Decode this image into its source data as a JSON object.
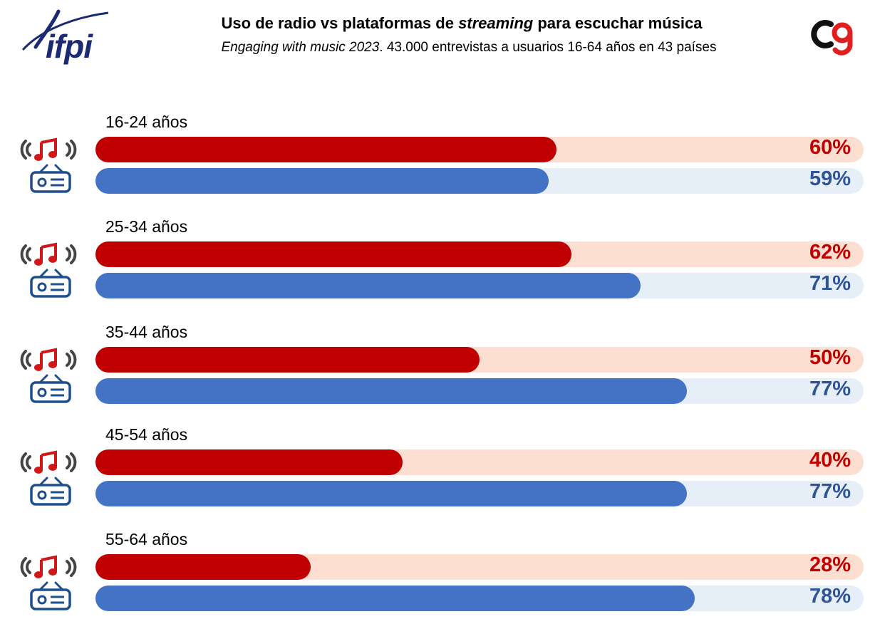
{
  "header": {
    "logo_left_text": "ifpi",
    "title_part1": "Uso de radio vs plataformas de ",
    "title_italic": "streaming",
    "title_part2": " para escuchar música",
    "subtitle_italic": "Engaging with music 2023",
    "subtitle_rest": ". 43.000 entrevistas a usuarios 16-64 años en 43 países"
  },
  "colors": {
    "streaming": "#c00000",
    "streaming_track": "#fcdfd0",
    "radio": "#4472c4",
    "radio_label": "#2f5597",
    "radio_track": "#e6eef8",
    "logo_blue": "#1b2a72"
  },
  "icons": {
    "streaming": "music-streaming-icon",
    "radio": "radio-icon"
  },
  "chart_data": {
    "type": "bar",
    "orientation": "horizontal",
    "categories": [
      "16-24 años",
      "25-34 años",
      "35-44 años",
      "45-54 años",
      "55-64 años"
    ],
    "series": [
      {
        "values": [
          60,
          62,
          50,
          40,
          28
        ],
        "labels": [
          "60%",
          "62%",
          "50%",
          "40%",
          "28%"
        ],
        "color": "#c00000",
        "icon": "music-streaming-icon"
      },
      {
        "values": [
          59,
          71,
          77,
          77,
          78
        ],
        "labels": [
          "59%",
          "71%",
          "77%",
          "77%",
          "78%"
        ],
        "color": "#4472c4",
        "icon": "radio-icon"
      }
    ],
    "xlim": [
      0,
      100
    ],
    "grid": false
  }
}
